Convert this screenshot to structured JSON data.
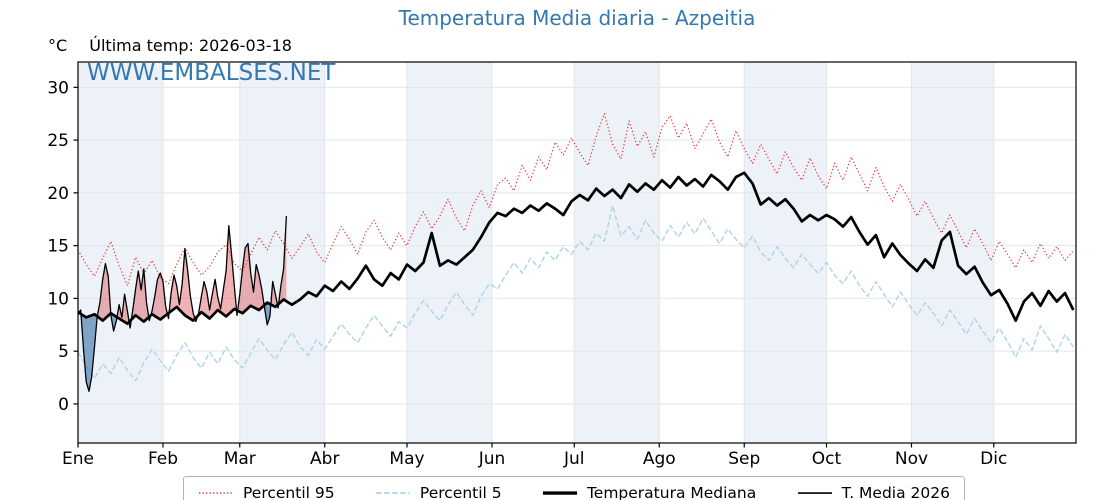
{
  "title": "Temperatura Media diaria - Azpeitia",
  "watermark": "WWW.EMBALSES.NET",
  "header": {
    "unit": "°C",
    "last_temp": "Última temp: 2026-03-18"
  },
  "colors": {
    "accent_blue": "#3478b2",
    "p95_red": "#e23b3b",
    "p5_blue": "#aed4e8",
    "median_black": "#000000",
    "fill_above_median": "rgba(225,85,92,0.45)",
    "fill_below_median": "rgba(58,118,170,0.62)",
    "month_band": "#edf2f9",
    "grid": "#e2e6eb"
  },
  "chart_data": {
    "type": "line",
    "title": "Temperatura Media diaria - Azpeitia",
    "xlabel": "",
    "ylabel": "°C",
    "ylim": [
      -3.7,
      32.4
    ],
    "y_ticks": [
      0,
      5,
      10,
      15,
      20,
      25,
      30
    ],
    "x_tick_labels": [
      "Ene",
      "Feb",
      "Mar",
      "Abr",
      "May",
      "Jun",
      "Jul",
      "Ago",
      "Sep",
      "Oct",
      "Nov",
      "Dic"
    ],
    "month_start_days": [
      1,
      32,
      60,
      91,
      121,
      152,
      182,
      213,
      244,
      274,
      305,
      335
    ],
    "days_in_year": 365,
    "last_date": "2026-03-18",
    "legend_position": "bottom-center",
    "grid": true,
    "style": {
      "band_color": "#edf2f9",
      "grid_color": "#e2e6eb",
      "plot_bg": "#ffffff"
    },
    "series": [
      {
        "name": "Percentil 95",
        "color": "#e23b3b",
        "width": 1.2,
        "dash": "1.3 2.2",
        "day_start": 1,
        "day_step": 3,
        "values": [
          14.6,
          13.2,
          12.1,
          13.8,
          15.4,
          13.1,
          11.2,
          13.9,
          12.3,
          13.6,
          12.0,
          11.4,
          13.2,
          14.8,
          13.4,
          12.2,
          13.0,
          14.4,
          15.1,
          13.3,
          12.6,
          14.2,
          15.8,
          14.6,
          16.4,
          15.2,
          13.8,
          14.9,
          16.1,
          14.4,
          13.4,
          15.2,
          16.8,
          15.6,
          14.2,
          16.3,
          17.4,
          15.8,
          14.6,
          16.2,
          15.0,
          16.8,
          18.2,
          16.6,
          17.8,
          19.4,
          17.6,
          16.4,
          18.8,
          20.2,
          18.6,
          20.8,
          21.4,
          20.2,
          22.6,
          21.2,
          23.4,
          22.2,
          24.8,
          23.6,
          25.2,
          23.8,
          22.6,
          25.4,
          27.5,
          24.6,
          23.2,
          26.8,
          24.4,
          25.8,
          23.4,
          26.2,
          27.3,
          25.2,
          26.6,
          24.2,
          25.6,
          27.0,
          24.8,
          23.4,
          25.9,
          24.2,
          22.8,
          24.6,
          23.2,
          21.8,
          23.9,
          22.4,
          21.2,
          23.3,
          21.6,
          20.4,
          22.8,
          21.2,
          23.4,
          21.8,
          20.2,
          22.4,
          20.6,
          19.2,
          20.8,
          19.4,
          17.8,
          19.2,
          17.6,
          16.2,
          17.9,
          16.4,
          14.8,
          16.6,
          15.2,
          13.6,
          15.4,
          14.2,
          12.9,
          14.6,
          13.4,
          15.2,
          13.8,
          14.9,
          13.6,
          14.5
        ]
      },
      {
        "name": "Percentil 5",
        "color": "#aed4e8",
        "width": 1.4,
        "dash": "5.5 2.6",
        "day_start": 1,
        "day_step": 3,
        "values": [
          4.9,
          3.6,
          2.4,
          3.8,
          2.9,
          4.4,
          3.2,
          2.2,
          3.9,
          5.2,
          4.1,
          3.1,
          4.6,
          5.8,
          4.4,
          3.4,
          4.9,
          3.8,
          5.4,
          4.2,
          3.4,
          4.8,
          6.2,
          5.1,
          4.2,
          5.6,
          6.8,
          5.4,
          4.6,
          6.1,
          5.2,
          6.4,
          7.6,
          6.6,
          5.8,
          7.2,
          8.4,
          7.4,
          6.4,
          7.8,
          7.2,
          8.6,
          9.8,
          8.8,
          7.9,
          9.4,
          10.6,
          9.4,
          8.4,
          10.2,
          11.4,
          10.9,
          12.2,
          13.4,
          12.4,
          13.8,
          12.9,
          14.4,
          13.6,
          14.9,
          14.2,
          15.4,
          14.6,
          16.2,
          15.4,
          18.8,
          15.9,
          16.8,
          15.6,
          17.4,
          16.2,
          15.4,
          16.9,
          15.8,
          17.2,
          16.1,
          17.6,
          16.4,
          15.2,
          16.6,
          15.6,
          14.8,
          15.9,
          14.4,
          13.6,
          14.9,
          13.8,
          12.9,
          14.2,
          13.2,
          12.4,
          13.4,
          12.2,
          11.4,
          12.6,
          11.2,
          10.2,
          11.6,
          10.4,
          9.2,
          10.6,
          9.4,
          8.4,
          9.6,
          8.6,
          7.4,
          8.9,
          7.8,
          6.6,
          8.1,
          6.9,
          5.8,
          7.2,
          5.9,
          4.4,
          6.2,
          5.1,
          7.4,
          6.2,
          4.9,
          6.6,
          5.4
        ]
      },
      {
        "name": "Temperatura Mediana",
        "color": "#000000",
        "width": 2.7,
        "dash": "",
        "day_start": 1,
        "day_step": 3,
        "values": [
          8.7,
          8.2,
          8.5,
          7.9,
          8.6,
          8.1,
          7.6,
          8.4,
          7.8,
          8.5,
          8.0,
          8.6,
          9.2,
          8.4,
          7.9,
          8.7,
          8.1,
          8.9,
          8.3,
          9.0,
          8.6,
          9.3,
          8.9,
          9.6,
          9.2,
          9.9,
          9.4,
          9.9,
          10.6,
          10.2,
          11.2,
          10.7,
          11.6,
          10.9,
          11.9,
          13.1,
          11.8,
          11.2,
          12.4,
          11.8,
          13.2,
          12.6,
          13.4,
          16.2,
          13.1,
          13.6,
          13.2,
          13.9,
          14.6,
          15.8,
          17.2,
          18.1,
          17.8,
          18.5,
          18.1,
          18.8,
          18.3,
          19.0,
          18.5,
          17.9,
          19.2,
          19.8,
          19.3,
          20.4,
          19.7,
          20.3,
          19.5,
          20.8,
          20.1,
          20.9,
          20.3,
          21.2,
          20.5,
          21.5,
          20.7,
          21.3,
          20.6,
          21.7,
          21.1,
          20.3,
          21.5,
          21.9,
          20.9,
          18.9,
          19.5,
          18.8,
          19.4,
          18.5,
          17.3,
          17.9,
          17.4,
          17.9,
          17.5,
          16.8,
          17.7,
          16.3,
          15.1,
          16.0,
          13.9,
          15.2,
          14.1,
          13.3,
          12.6,
          13.7,
          12.9,
          15.5,
          16.3,
          13.1,
          12.3,
          13.0,
          11.5,
          10.3,
          10.8,
          9.5,
          7.9,
          9.7,
          10.5,
          9.3,
          10.7,
          9.7,
          10.5,
          8.9
        ]
      },
      {
        "name": "T. Media 2026",
        "color": "#000000",
        "width": 1.3,
        "dash": "",
        "day_start": 1,
        "day_step": 1,
        "fill_above": "rgba(225,85,92,0.45)",
        "fill_below": "rgba(58,118,170,0.62)",
        "fill_reference": "Temperatura Mediana",
        "values": [
          8.6,
          8.9,
          5.2,
          2.1,
          1.2,
          2.6,
          5.4,
          8.3,
          9.6,
          11.8,
          13.3,
          12.1,
          8.4,
          6.9,
          7.9,
          9.4,
          8.2,
          10.4,
          8.8,
          7.2,
          8.9,
          10.9,
          12.6,
          10.8,
          12.8,
          9.6,
          7.9,
          8.8,
          10.2,
          11.8,
          12.4,
          11.6,
          9.2,
          8.1,
          10.6,
          12.2,
          11.2,
          9.4,
          11.4,
          14.7,
          12.6,
          10.2,
          8.6,
          7.8,
          8.6,
          10.2,
          11.6,
          10.6,
          8.9,
          10.4,
          11.8,
          10.1,
          9.0,
          10.8,
          12.6,
          16.9,
          14.2,
          11.2,
          8.4,
          10.4,
          12.8,
          14.8,
          15.2,
          12.4,
          10.6,
          13.2,
          12.2,
          10.9,
          9.2,
          7.5,
          8.3,
          11.6,
          10.4,
          9.1,
          11.2,
          12.8,
          17.8
        ]
      }
    ]
  }
}
